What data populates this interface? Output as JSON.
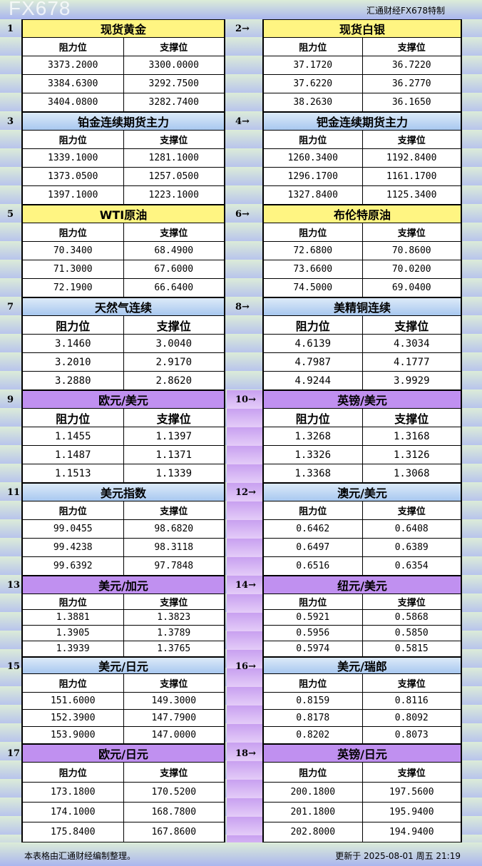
{
  "brand": "汇通财经FX678特制",
  "col_resist": "阻力位",
  "col_support": "支撑位",
  "colors": {
    "yellow": "#fff582",
    "blue": "#b8d4f4",
    "purple": "#c090f0"
  },
  "sections": [
    {
      "num": "1",
      "title": "现货黄金",
      "color": "yellow",
      "rows": [
        [
          "3373.2000",
          "3300.0000"
        ],
        [
          "3384.6300",
          "3292.7500"
        ],
        [
          "3404.0800",
          "3282.7400"
        ]
      ]
    },
    {
      "num": "2→",
      "title": "现货白银",
      "color": "yellow",
      "rows": [
        [
          "37.1720",
          "36.7220"
        ],
        [
          "37.6220",
          "36.2770"
        ],
        [
          "38.2630",
          "36.1650"
        ]
      ]
    },
    {
      "num": "3",
      "title": "铂金连续期货主力",
      "color": "blue",
      "rows": [
        [
          "1339.1000",
          "1281.1000"
        ],
        [
          "1373.0500",
          "1257.0500"
        ],
        [
          "1397.1000",
          "1223.1000"
        ]
      ]
    },
    {
      "num": "4→",
      "title": "钯金连续期货主力",
      "color": "blue",
      "rows": [
        [
          "1260.3400",
          "1192.8400"
        ],
        [
          "1296.1700",
          "1161.1700"
        ],
        [
          "1327.8400",
          "1125.3400"
        ]
      ]
    },
    {
      "num": "5",
      "title": "WTI原油",
      "color": "yellow",
      "rows": [
        [
          "70.3400",
          "68.4900"
        ],
        [
          "71.3000",
          "67.6000"
        ],
        [
          "72.1900",
          "66.6400"
        ]
      ]
    },
    {
      "num": "6→",
      "title": "布伦特原油",
      "color": "yellow",
      "rows": [
        [
          "72.6800",
          "70.8600"
        ],
        [
          "73.6600",
          "70.0200"
        ],
        [
          "74.5000",
          "69.0400"
        ]
      ]
    },
    {
      "num": "7",
      "title": "天然气连续",
      "color": "blue",
      "rows": [
        [
          "3.1460",
          "3.0040"
        ],
        [
          "3.2010",
          "2.9170"
        ],
        [
          "3.2880",
          "2.8620"
        ]
      ]
    },
    {
      "num": "8→",
      "title": "美精铜连续",
      "color": "blue",
      "rows": [
        [
          "4.6139",
          "4.3034"
        ],
        [
          "4.7987",
          "4.1777"
        ],
        [
          "4.9244",
          "3.9929"
        ]
      ]
    },
    {
      "num": "9",
      "title": "欧元/美元",
      "color": "purple",
      "rows": [
        [
          "1.1455",
          "1.1397"
        ],
        [
          "1.1487",
          "1.1371"
        ],
        [
          "1.1513",
          "1.1339"
        ]
      ]
    },
    {
      "num": "10→",
      "title": "英镑/美元",
      "color": "purple",
      "rows": [
        [
          "1.3268",
          "1.3168"
        ],
        [
          "1.3326",
          "1.3126"
        ],
        [
          "1.3368",
          "1.3068"
        ]
      ]
    },
    {
      "num": "11",
      "title": "美元指数",
      "color": "blue",
      "rows": [
        [
          "99.0455",
          "98.6820"
        ],
        [
          "99.4238",
          "98.3118"
        ],
        [
          "99.6392",
          "97.7848"
        ]
      ]
    },
    {
      "num": "12→",
      "title": "澳元/美元",
      "color": "blue",
      "rows": [
        [
          "0.6462",
          "0.6408"
        ],
        [
          "0.6497",
          "0.6389"
        ],
        [
          "0.6516",
          "0.6354"
        ]
      ]
    },
    {
      "num": "13",
      "title": "美元/加元",
      "color": "purple",
      "rows": [
        [
          "1.3881",
          "1.3823"
        ],
        [
          "1.3905",
          "1.3789"
        ],
        [
          "1.3939",
          "1.3765"
        ]
      ]
    },
    {
      "num": "14→",
      "title": "纽元/美元",
      "color": "purple",
      "rows": [
        [
          "0.5921",
          "0.5868"
        ],
        [
          "0.5956",
          "0.5850"
        ],
        [
          "0.5974",
          "0.5815"
        ]
      ]
    },
    {
      "num": "15",
      "title": "美元/日元",
      "color": "blue",
      "rows": [
        [
          "151.6000",
          "149.3000"
        ],
        [
          "152.3900",
          "147.7900"
        ],
        [
          "153.9000",
          "147.0000"
        ]
      ]
    },
    {
      "num": "16→",
      "title": "美元/瑞郎",
      "color": "blue",
      "rows": [
        [
          "0.8159",
          "0.8116"
        ],
        [
          "0.8178",
          "0.8092"
        ],
        [
          "0.8202",
          "0.8073"
        ]
      ]
    },
    {
      "num": "17",
      "title": "欧元/日元",
      "color": "purple",
      "rows": [
        [
          "173.1800",
          "170.5200"
        ],
        [
          "174.1000",
          "168.7800"
        ],
        [
          "175.8400",
          "167.8600"
        ]
      ]
    },
    {
      "num": "18→",
      "title": "英镑/日元",
      "color": "purple",
      "rows": [
        [
          "200.1800",
          "197.5600"
        ],
        [
          "201.1800",
          "195.9400"
        ],
        [
          "202.8000",
          "194.9400"
        ]
      ]
    }
  ],
  "footer_left": "本表格由汇通财经编制整理。",
  "footer_right": "更新于 2025-08-01 周五 21:19",
  "watermark": "FX678"
}
